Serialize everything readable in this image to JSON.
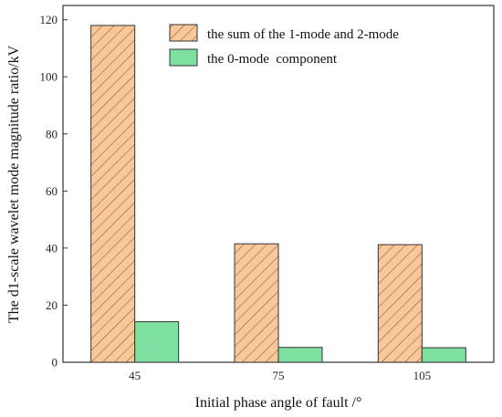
{
  "chart_data": {
    "type": "bar",
    "categories": [
      "45",
      "75",
      "105"
    ],
    "series": [
      {
        "name": "the sum of the 1-mode and 2-mode",
        "values": [
          118,
          41.5,
          41.2
        ],
        "color": "#f8c89a",
        "pattern": "diagonal-hatch"
      },
      {
        "name": "the 0-mode  component",
        "values": [
          14.2,
          5.2,
          5.1
        ],
        "color": "#7ee0a0",
        "pattern": "solid"
      }
    ],
    "xlabel": "Initial phase angle of fault /°",
    "ylabel": "The d1-scale wavelet mode magnitude ratio/kV",
    "ylim": [
      0,
      125
    ],
    "yticks": [
      0,
      20,
      40,
      60,
      80,
      100,
      120
    ],
    "legend_position": "top-right",
    "grid": false
  }
}
